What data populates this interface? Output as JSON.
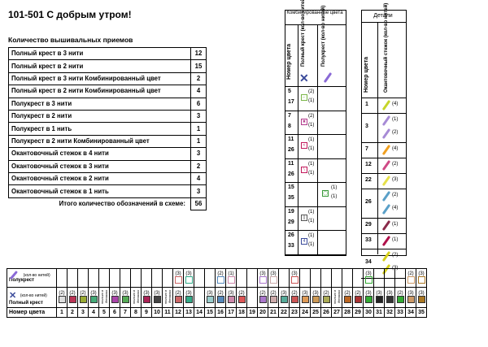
{
  "header": {
    "title": "101-501  С добрым утром!",
    "subtitle": "Количество вышивальных приемов"
  },
  "techniques": [
    {
      "label": "Полный крест в 3 нити",
      "count": "12"
    },
    {
      "label": "Полный крест в 2 нити",
      "count": "15"
    },
    {
      "label": "Полный крест в 3 нити Комбинированный цвет",
      "count": "2"
    },
    {
      "label": "Полный крест в 2 нити Комбинированный цвет",
      "count": "4"
    },
    {
      "label": "Полукрест в 3 нити",
      "count": "6"
    },
    {
      "label": "Полукрест в 2 нити",
      "count": "3"
    },
    {
      "label": "Полукрест в 1 нить",
      "count": "1"
    },
    {
      "label": "Полукрест в 2 нити Комбинированный цвет",
      "count": "1"
    },
    {
      "label": "Окантовочный стежок в 4 нити",
      "count": "3"
    },
    {
      "label": "Окантовочный стежок в 3 нити",
      "count": "2"
    },
    {
      "label": "Окантовочный стежок в 2 нити",
      "count": "4"
    },
    {
      "label": "Окантовочный стежок в 1 нить",
      "count": "3"
    }
  ],
  "total": {
    "label": "Итого количество обозначений в схеме:",
    "count": "56"
  },
  "combined": {
    "caption": "Комбинированные цвета",
    "col_number": "Номер цвета",
    "col_cross": "Полный крест (кол-во нитей)",
    "col_half": "Полукрест (кол-во нитей)",
    "rows": [
      {
        "a": "5",
        "b": "17",
        "sym": "⌐",
        "symcolor": "#7ab648",
        "cnt": "(2)",
        "cnt2": "(1)",
        "half": ""
      },
      {
        "a": "7",
        "b": "8",
        "sym": "✖",
        "symcolor": "#b23a8c",
        "cnt": "(2)",
        "cnt2": "(1)",
        "half": ""
      },
      {
        "a": "11",
        "b": "26",
        "sym": "<",
        "symcolor": "#c2185b",
        "cnt": "(1)",
        "cnt2": "(1)",
        "half": ""
      },
      {
        "a": "11",
        "b": "26",
        "sym": "\\",
        "symcolor": "#c2185b",
        "cnt": "(1)",
        "cnt2": "(1)",
        "half": ""
      },
      {
        "a": "15",
        "b": "35",
        "sym": "",
        "symcolor": "",
        "cnt": "",
        "cnt2": "",
        "half": "◯",
        "hcnt": "(1)",
        "hcnt2": "(1)"
      },
      {
        "a": "19",
        "b": "29",
        "sym": "∥",
        "symcolor": "#555",
        "cnt": "(1)",
        "cnt2": "(1)",
        "half": ""
      },
      {
        "a": "26",
        "b": "33",
        "sym": "4",
        "symcolor": "#3a4a9a",
        "cnt": "(1)",
        "cnt2": "(1)",
        "half": ""
      }
    ]
  },
  "details": {
    "caption": "Детали",
    "col_number": "Номер цвета",
    "col_stitch": "Окантовочный стежок (кол-во нитей)",
    "rows": [
      {
        "n": "1",
        "c": "(4)",
        "color": "#c6d52a"
      },
      {
        "n": "3",
        "c": "(1)",
        "color": "#a78bd6",
        "c2": "(2)"
      },
      {
        "n": "7",
        "c": "(4)",
        "color": "#f0a020"
      },
      {
        "n": "12",
        "c": "(2)",
        "color": "#cf4a86"
      },
      {
        "n": "22",
        "c": "(3)",
        "color": "#e6e04a"
      },
      {
        "n": "26",
        "c": "(2)",
        "color": "#5aa0c8",
        "c2": "(4)"
      },
      {
        "n": "29",
        "c": "(1)",
        "color": "#8a2a4a"
      },
      {
        "n": "33",
        "c": "(1)",
        "color": "#b0104a"
      },
      {
        "n": "34",
        "c": "(2)",
        "color": "#d6d01a",
        "c2": "(3)"
      }
    ]
  },
  "legend": {
    "half_label": "Полукрест",
    "half_threads": "(кол-во нитей)",
    "cross_label": "Полный крест",
    "cross_threads": "(кол-во нитей)",
    "number_label": "Номер цвета",
    "note": "только в деталях",
    "numbers": [
      "1",
      "2",
      "3",
      "4",
      "5",
      "6",
      "7",
      "8",
      "9",
      "10",
      "11",
      "12",
      "13",
      "14",
      "15",
      "16",
      "17",
      "18",
      "19",
      "20",
      "21",
      "22",
      "23",
      "24",
      "25",
      "26",
      "27",
      "28",
      "29",
      "30",
      "31",
      "32",
      "33",
      "34",
      "35"
    ],
    "cross_counts": [
      "(2)",
      "(2)",
      "(2)",
      "(3)",
      "",
      "(3)",
      "(3)",
      "",
      "(3)",
      "(3)",
      "(2)",
      "(2)",
      "(3)",
      "",
      "(3)",
      "(2)",
      "(3)",
      "(2)",
      "",
      "(2)",
      "(2)",
      "(3)",
      "(2)",
      "(3)",
      "(3)",
      "(2)",
      "",
      "(2)",
      "(2)",
      "(3)",
      "(3)",
      "(3)",
      "(2)",
      "(3)",
      "(3)"
    ],
    "half_counts": [
      "",
      "",
      "",
      "",
      "",
      "",
      "",
      "",
      "",
      "",
      "",
      "(3)",
      "(3)",
      "",
      "",
      "(2)",
      "(1)",
      "",
      "",
      "(3)",
      "(3)",
      "",
      "(3)",
      "",
      "",
      "",
      "",
      "",
      "",
      "(3)",
      "",
      "",
      "",
      "(2)",
      "(3)"
    ]
  }
}
